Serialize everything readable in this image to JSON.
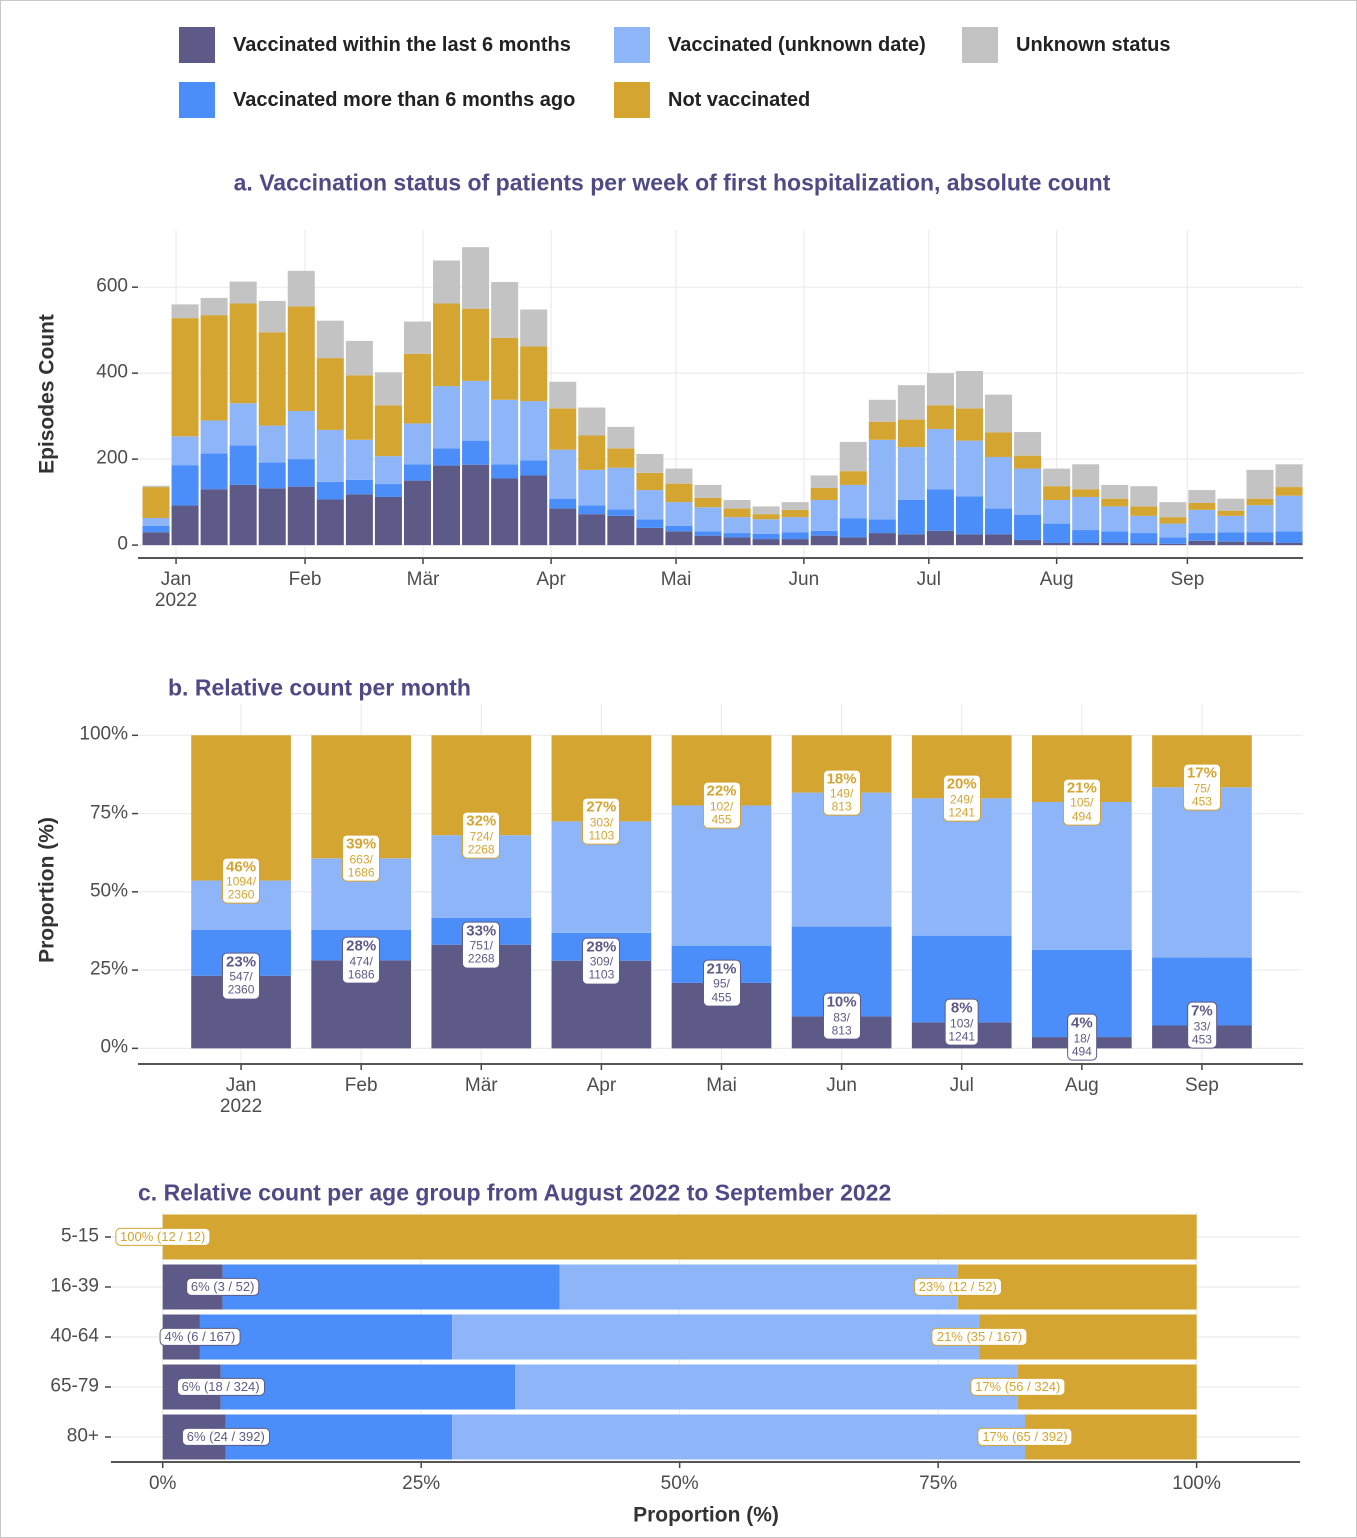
{
  "chart_data": [
    {
      "type": "bar",
      "stacked": true,
      "legend": "top",
      "title": "a. Vaccination status of patients per week of first hospitalization, absolute count",
      "y_label": "Episodes Count",
      "categories": [
        null,
        null,
        null,
        null,
        null,
        null,
        null,
        null,
        null,
        null,
        null,
        null,
        null,
        null,
        null,
        null,
        null,
        null,
        null,
        null,
        null,
        null,
        null,
        null,
        null,
        null,
        null,
        null,
        null,
        null,
        null,
        null,
        null,
        null,
        null,
        null,
        null,
        null,
        null,
        null
      ],
      "xlim": [
        -0.62,
        39.48
      ],
      "xticks": [
        {
          "value": 0.69,
          "label": "Jan\n2022"
        },
        {
          "value": 5.13,
          "label": "Feb"
        },
        {
          "value": 9.19,
          "label": "Mär"
        },
        {
          "value": 13.6,
          "label": "Apr"
        },
        {
          "value": 17.9,
          "label": "Mai"
        },
        {
          "value": 22.3,
          "label": "Jun"
        },
        {
          "value": 26.6,
          "label": "Jul"
        },
        {
          "value": 31.0,
          "label": "Aug"
        },
        {
          "value": 35.5,
          "label": "Sep"
        }
      ],
      "ylim": [
        -30,
        733
      ],
      "yticks": [
        0,
        200,
        400,
        600
      ],
      "grid": true,
      "series": [
        {
          "name": "Vaccinated within the last 6 months",
          "color": "#5e5a88",
          "values": [
            30,
            92,
            130,
            140,
            132,
            136,
            106,
            118,
            112,
            150,
            185,
            187,
            155,
            162,
            85,
            72,
            68,
            40,
            32,
            22,
            18,
            14,
            14,
            22,
            18,
            28,
            25,
            33,
            25,
            25,
            12,
            5,
            5,
            5,
            4,
            3,
            10,
            8,
            8,
            5
          ]
        },
        {
          "name": "Vaccinated more than 6 months ago",
          "color": "#4b8ef9",
          "values": [
            15,
            94,
            83,
            92,
            60,
            64,
            41,
            34,
            30,
            38,
            40,
            56,
            33,
            35,
            23,
            20,
            15,
            20,
            13,
            10,
            10,
            12,
            16,
            11,
            44,
            32,
            80,
            97,
            88,
            60,
            58,
            45,
            30,
            27,
            24,
            15,
            18,
            22,
            22,
            27
          ]
        },
        {
          "name": "Vaccinated (unknown date)",
          "color": "#8db5f8",
          "values": [
            18,
            67,
            77,
            98,
            86,
            112,
            121,
            93,
            65,
            95,
            145,
            139,
            150,
            138,
            114,
            83,
            97,
            68,
            55,
            56,
            37,
            34,
            35,
            72,
            78,
            185,
            123,
            140,
            130,
            120,
            108,
            55,
            77,
            58,
            40,
            32,
            54,
            38,
            63,
            83
          ]
        },
        {
          "name": "Not vaccinated",
          "color": "#d5a532",
          "values": [
            72,
            275,
            245,
            232,
            217,
            243,
            167,
            150,
            118,
            162,
            192,
            168,
            144,
            127,
            96,
            80,
            45,
            40,
            43,
            22,
            20,
            12,
            17,
            28,
            32,
            42,
            64,
            55,
            75,
            57,
            30,
            32,
            18,
            18,
            22,
            15,
            16,
            12,
            15,
            20
          ]
        },
        {
          "name": "Unknown status",
          "color": "#c3c3c3",
          "values": [
            3,
            32,
            40,
            51,
            73,
            83,
            87,
            80,
            77,
            75,
            100,
            143,
            130,
            86,
            62,
            65,
            50,
            44,
            35,
            30,
            20,
            18,
            18,
            29,
            68,
            51,
            80,
            75,
            87,
            88,
            55,
            41,
            58,
            32,
            47,
            35,
            30,
            28,
            67,
            53
          ]
        }
      ]
    },
    {
      "type": "bar",
      "stacked": true,
      "title": "b. Relative count per month",
      "y_label": "Proportion (%)",
      "categories": [
        "Jan\n2022",
        "Feb",
        "Mär",
        "Apr",
        "Mai",
        "Jun",
        "Jul",
        "Aug",
        "Sep"
      ],
      "ylim": [
        -5,
        110
      ],
      "yticks": [
        {
          "value": 0,
          "label": "0%"
        },
        {
          "value": 25,
          "label": "25%"
        },
        {
          "value": 50,
          "label": "50%"
        },
        {
          "value": 75,
          "label": "75%"
        },
        {
          "value": 100,
          "label": "100%"
        }
      ],
      "grid": true,
      "series": [
        {
          "color": "#5e5a88",
          "values": [
            23.2,
            28.1,
            33.1,
            28.0,
            20.9,
            10.2,
            8.3,
            3.6,
            7.3
          ],
          "value_labels": [
            "23%",
            "28%",
            "33%",
            "28%",
            "21%",
            "10%",
            "8%",
            "4%",
            "7%"
          ],
          "count_labels": [
            "547/\n2360",
            "474/\n1686",
            "751/\n2268",
            "309/\n1103",
            "95/\n455",
            "83/\n813",
            "103/\n1241",
            "18/\n494",
            "33/\n453"
          ]
        },
        {
          "color": "#4b8ef9",
          "values": [
            14.7,
            9.8,
            8.6,
            8.9,
            11.9,
            28.7,
            27.7,
            27.9,
            21.7
          ]
        },
        {
          "color": "#8db5f8",
          "values": [
            15.7,
            22.8,
            26.4,
            35.6,
            44.8,
            42.8,
            43.9,
            47.2,
            54.4
          ]
        },
        {
          "color": "#d5a532",
          "values": [
            46.4,
            39.3,
            31.9,
            27.5,
            22.4,
            18.3,
            20.1,
            21.3,
            16.6
          ],
          "value_labels": [
            "46%",
            "39%",
            "32%",
            "27%",
            "22%",
            "18%",
            "20%",
            "21%",
            "17%"
          ],
          "count_labels": [
            "1094/\n2360",
            "663/\n1686",
            "724/\n2268",
            "303/\n1103",
            "102/\n455",
            "149/\n813",
            "249/\n1241",
            "105/\n494",
            "75/\n453"
          ]
        }
      ]
    },
    {
      "type": "barh",
      "stacked": true,
      "title": "c. Relative count per age group from August 2022 to September 2022",
      "x_label": "Proportion (%)",
      "categories": [
        "5-15",
        "16-39",
        "40-64",
        "65-79",
        "80+"
      ],
      "xlim": [
        -5,
        110
      ],
      "xticks": [
        {
          "value": 0,
          "label": "0%"
        },
        {
          "value": 25,
          "label": "25%"
        },
        {
          "value": 50,
          "label": "50%"
        },
        {
          "value": 75,
          "label": "75%"
        },
        {
          "value": 100,
          "label": "100%"
        }
      ],
      "grid": true,
      "series": [
        {
          "color": "#5e5a88",
          "values": [
            0,
            5.8,
            3.6,
            5.6,
            6.1
          ],
          "value_labels": [
            null,
            "6% (3 / 52)",
            "4% (6 / 167)",
            "6% (18 / 324)",
            "6% (24 / 392)"
          ]
        },
        {
          "color": "#4b8ef9",
          "values": [
            0,
            32.6,
            24.4,
            28.5,
            21.9
          ]
        },
        {
          "color": "#8db5f8",
          "values": [
            0,
            38.5,
            51.0,
            48.6,
            55.4
          ]
        },
        {
          "color": "#d5a532",
          "values": [
            100,
            23.1,
            21.0,
            17.3,
            16.6
          ],
          "value_labels": [
            "100% (12 / 12)",
            "23% (12 / 52)",
            "21% (35 / 167)",
            "17% (56 / 324)",
            "17% (65 / 392)"
          ]
        }
      ]
    }
  ]
}
